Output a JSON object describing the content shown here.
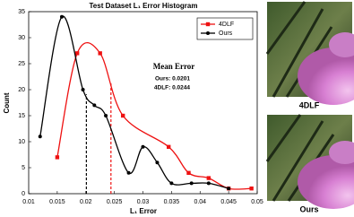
{
  "chart_data": {
    "type": "line",
    "title": "Test Dataset L₁ Error Histogram",
    "x_label": "L₁ Error",
    "y_label": "Count",
    "xlim": [
      0.01,
      0.05
    ],
    "xticks": [
      0.01,
      0.015,
      0.02,
      0.025,
      0.03,
      0.035,
      0.04,
      0.045,
      0.05
    ],
    "ylim": [
      0,
      35
    ],
    "yticks": [
      0,
      5,
      10,
      15,
      20,
      25,
      30,
      35
    ],
    "legend": "upper right",
    "series": [
      {
        "name": "4DLF",
        "color": "#ee1111",
        "marker": "square",
        "x": [
          0.015,
          0.0185,
          0.0225,
          0.0265,
          0.0345,
          0.038,
          0.0415,
          0.045,
          0.049
        ],
        "values": [
          7,
          27,
          27,
          15,
          9,
          4,
          3,
          1,
          1
        ]
      },
      {
        "name": "Ours",
        "color": "#000000",
        "marker": "circle",
        "x": [
          0.012,
          0.0158,
          0.0195,
          0.0215,
          0.0235,
          0.0275,
          0.03,
          0.0325,
          0.035,
          0.0385,
          0.0415,
          0.045
        ],
        "values": [
          11,
          34,
          20,
          17,
          15,
          4,
          9,
          6,
          2,
          2,
          2,
          1
        ]
      }
    ],
    "mean_error": {
      "title": "Mean Error",
      "entries": [
        {
          "label": "Ours: 0.0201",
          "value": 0.0201,
          "color": "#000000",
          "series": 1
        },
        {
          "label": "4DLF: 0.0244",
          "value": 0.0244,
          "color": "#ee1111",
          "series": 0
        }
      ]
    }
  },
  "images": [
    {
      "caption": "4DLF"
    },
    {
      "caption": "Ours"
    }
  ]
}
